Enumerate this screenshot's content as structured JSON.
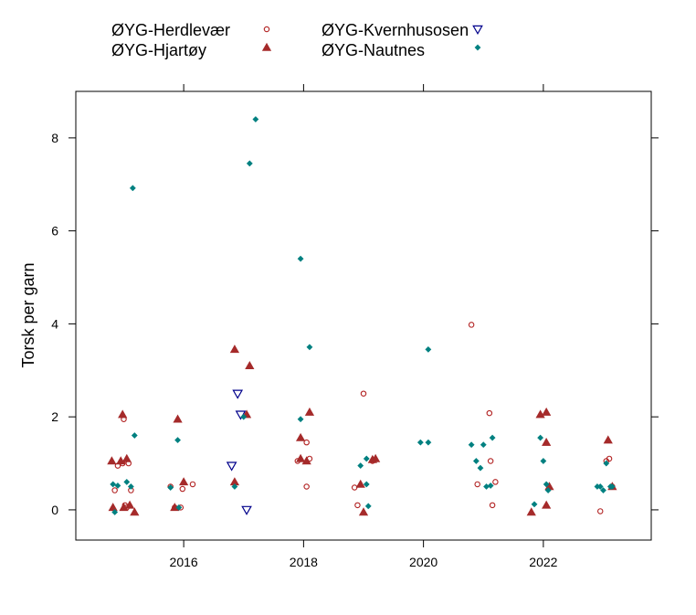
{
  "chart_data": {
    "type": "scatter",
    "title": "",
    "xlabel": "",
    "ylabel": "Torsk per garn",
    "xlim": [
      2014.2,
      2023.8
    ],
    "ylim": [
      -0.65,
      9.0
    ],
    "xticks": [
      2016,
      2018,
      2020,
      2022
    ],
    "yticks": [
      0,
      2,
      4,
      6,
      8
    ],
    "grid": false,
    "legend_position": "top",
    "series": [
      {
        "name": "ØYG-Herdlevær",
        "marker": "circle-open",
        "color": "#b22222",
        "points": [
          [
            2014.85,
            0.42
          ],
          [
            2014.9,
            0.95
          ],
          [
            2014.98,
            1.0
          ],
          [
            2015.0,
            1.95
          ],
          [
            2015.02,
            0.1
          ],
          [
            2015.05,
            0.05
          ],
          [
            2015.08,
            1.0
          ],
          [
            2015.12,
            0.42
          ],
          [
            2015.78,
            0.5
          ],
          [
            2015.85,
            0.05
          ],
          [
            2015.95,
            0.05
          ],
          [
            2015.98,
            0.45
          ],
          [
            2016.15,
            0.55
          ],
          [
            2017.9,
            1.05
          ],
          [
            2018.05,
            0.5
          ],
          [
            2018.05,
            1.45
          ],
          [
            2018.1,
            1.1
          ],
          [
            2018.85,
            0.48
          ],
          [
            2018.9,
            0.1
          ],
          [
            2019.0,
            2.5
          ],
          [
            2019.15,
            1.05
          ],
          [
            2020.8,
            3.98
          ],
          [
            2020.9,
            0.55
          ],
          [
            2021.1,
            2.08
          ],
          [
            2021.12,
            1.05
          ],
          [
            2021.15,
            0.1
          ],
          [
            2021.2,
            0.6
          ],
          [
            2022.95,
            -0.03
          ],
          [
            2023.05,
            1.05
          ],
          [
            2023.1,
            1.1
          ],
          [
            2023.15,
            0.5
          ]
        ]
      },
      {
        "name": "ØYG-Hjartøy",
        "marker": "triangle-filled",
        "color": "#a52a2a",
        "points": [
          [
            2014.8,
            1.05
          ],
          [
            2014.82,
            0.05
          ],
          [
            2014.95,
            1.05
          ],
          [
            2014.98,
            2.05
          ],
          [
            2015.0,
            0.05
          ],
          [
            2015.05,
            1.1
          ],
          [
            2015.1,
            0.1
          ],
          [
            2015.18,
            -0.05
          ],
          [
            2015.85,
            0.05
          ],
          [
            2015.9,
            1.95
          ],
          [
            2016.0,
            0.6
          ],
          [
            2016.85,
            0.6
          ],
          [
            2016.85,
            3.45
          ],
          [
            2017.05,
            2.05
          ],
          [
            2017.1,
            3.1
          ],
          [
            2017.95,
            1.55
          ],
          [
            2017.95,
            1.1
          ],
          [
            2018.05,
            1.05
          ],
          [
            2018.1,
            2.1
          ],
          [
            2018.95,
            0.55
          ],
          [
            2019.0,
            -0.05
          ],
          [
            2019.15,
            1.08
          ],
          [
            2019.2,
            1.1
          ],
          [
            2021.8,
            -0.05
          ],
          [
            2021.95,
            2.05
          ],
          [
            2022.05,
            2.1
          ],
          [
            2022.05,
            1.45
          ],
          [
            2022.05,
            0.1
          ],
          [
            2022.1,
            0.5
          ],
          [
            2023.08,
            1.5
          ],
          [
            2023.15,
            0.5
          ]
        ]
      },
      {
        "name": "ØYG-Kvernhusosen",
        "marker": "triangle-down-open",
        "color": "#00008b",
        "points": [
          [
            2016.8,
            0.95
          ],
          [
            2016.9,
            2.5
          ],
          [
            2016.95,
            2.05
          ],
          [
            2017.05,
            0.0
          ]
        ]
      },
      {
        "name": "ØYG-Nautnes",
        "marker": "diamond-filled",
        "color": "#008080",
        "points": [
          [
            2014.82,
            0.55
          ],
          [
            2014.85,
            -0.05
          ],
          [
            2014.9,
            0.52
          ],
          [
            2015.05,
            0.6
          ],
          [
            2015.12,
            0.5
          ],
          [
            2015.15,
            6.92
          ],
          [
            2015.18,
            1.6
          ],
          [
            2015.78,
            0.48
          ],
          [
            2015.9,
            1.5
          ],
          [
            2015.92,
            0.05
          ],
          [
            2016.85,
            0.5
          ],
          [
            2017.0,
            2.0
          ],
          [
            2017.1,
            7.45
          ],
          [
            2017.2,
            8.4
          ],
          [
            2017.95,
            5.4
          ],
          [
            2017.95,
            1.95
          ],
          [
            2018.1,
            3.5
          ],
          [
            2018.95,
            0.95
          ],
          [
            2019.05,
            0.55
          ],
          [
            2019.05,
            1.1
          ],
          [
            2019.08,
            0.08
          ],
          [
            2019.95,
            1.45
          ],
          [
            2020.08,
            1.45
          ],
          [
            2020.08,
            3.45
          ],
          [
            2020.8,
            1.4
          ],
          [
            2020.88,
            1.05
          ],
          [
            2020.95,
            0.9
          ],
          [
            2021.0,
            1.4
          ],
          [
            2021.05,
            0.5
          ],
          [
            2021.12,
            0.52
          ],
          [
            2021.15,
            1.55
          ],
          [
            2021.85,
            0.12
          ],
          [
            2021.95,
            1.55
          ],
          [
            2022.0,
            1.05
          ],
          [
            2022.05,
            0.55
          ],
          [
            2022.08,
            0.42
          ],
          [
            2022.9,
            0.5
          ],
          [
            2022.95,
            0.5
          ],
          [
            2023.0,
            0.42
          ],
          [
            2023.05,
            1.0
          ],
          [
            2023.12,
            0.5
          ],
          [
            2023.15,
            0.5
          ]
        ]
      }
    ]
  }
}
